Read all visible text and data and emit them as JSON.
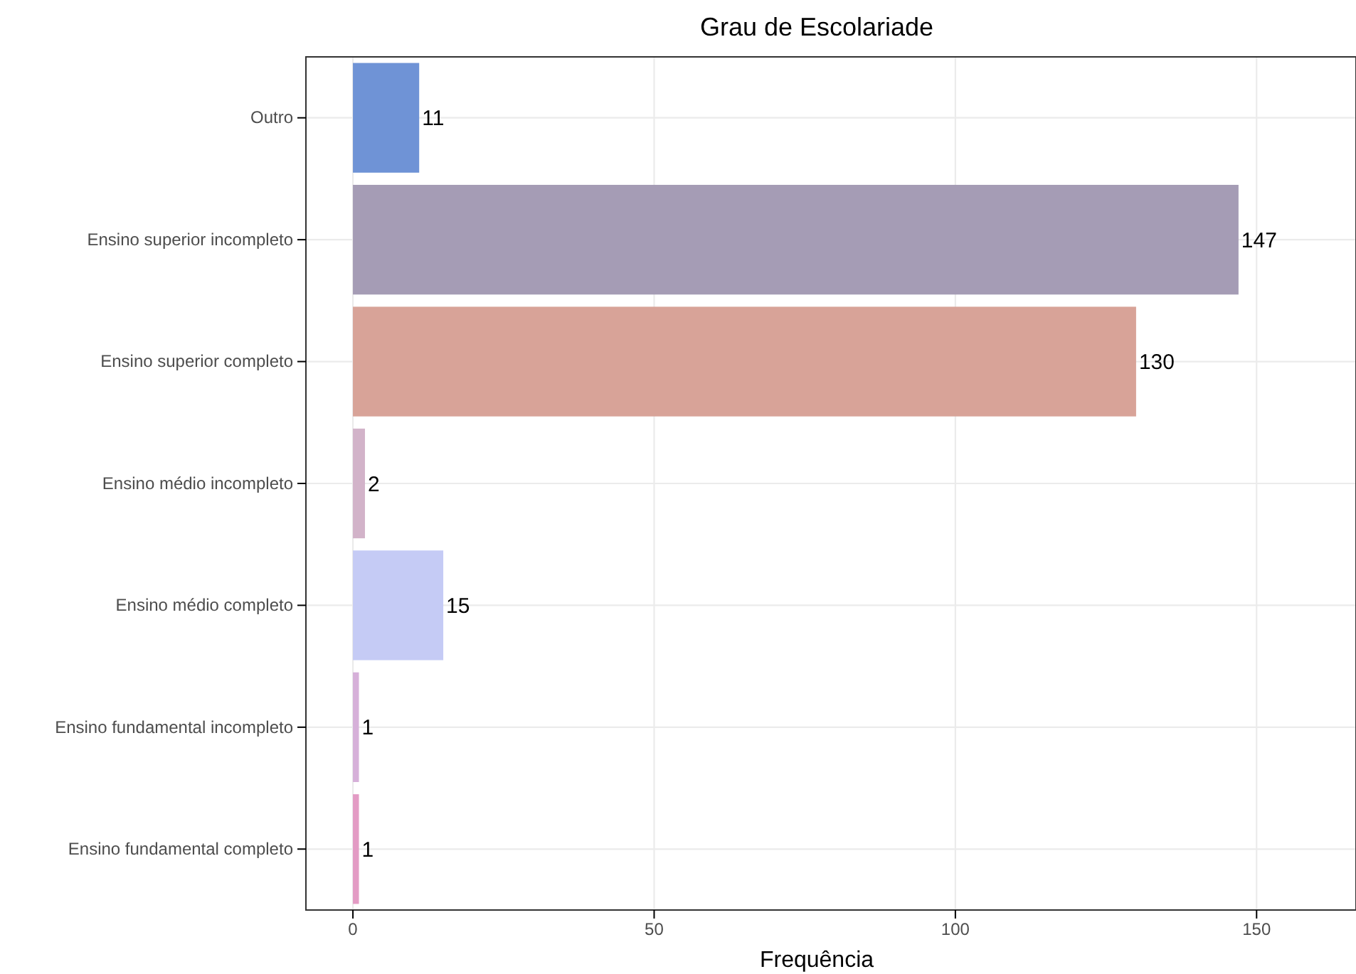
{
  "chart_data": {
    "type": "bar",
    "orientation": "horizontal",
    "title": "Grau de Escolariade",
    "xlabel": "Frequência",
    "categories": [
      "Outro",
      "Ensino superior incompleto",
      "Ensino superior completo",
      "Ensino médio incompleto",
      "Ensino médio completo",
      "Ensino fundamental incompleto",
      "Ensino fundamental completo"
    ],
    "values": [
      11,
      147,
      130,
      2,
      15,
      1,
      1
    ],
    "colors": [
      "#6f93d6",
      "#a59cb5",
      "#d8a398",
      "#d2b3c9",
      "#c5cbf5",
      "#d6b0d9",
      "#e39bc4"
    ],
    "xlim": [
      -7.8,
      166.5
    ],
    "xticks": [
      0,
      50,
      100,
      150
    ],
    "grid": true,
    "data_labels": true
  }
}
